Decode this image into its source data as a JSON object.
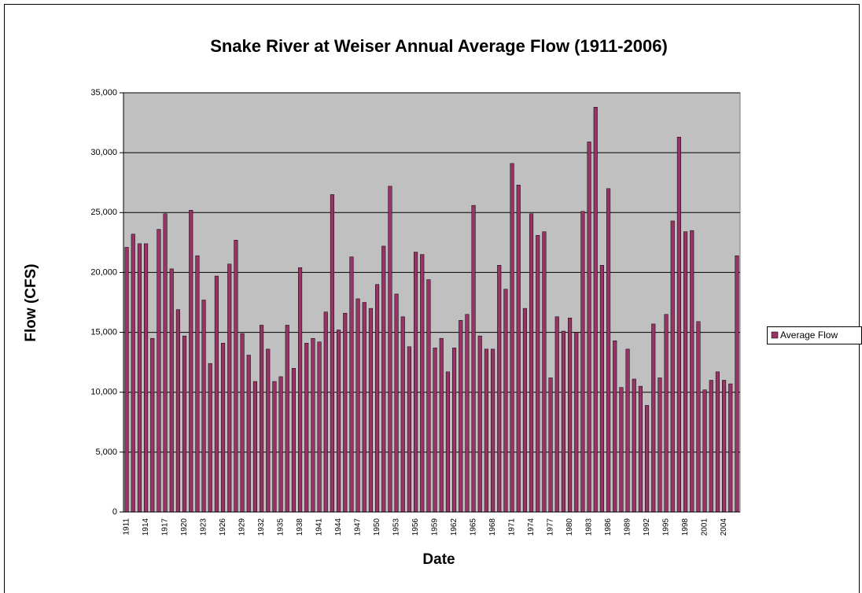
{
  "chart_data": {
    "type": "bar",
    "title": "Snake River at Weiser Annual Average Flow (1911-2006)",
    "x_label": "Date",
    "y_label": "Flow (CFS)",
    "categories": [
      "1911",
      null,
      null,
      "1914",
      null,
      null,
      "1917",
      null,
      null,
      "1920",
      null,
      null,
      "1923",
      null,
      null,
      "1926",
      null,
      null,
      "1929",
      null,
      null,
      "1932",
      null,
      null,
      "1935",
      null,
      null,
      "1938",
      null,
      null,
      "1941",
      null,
      null,
      "1944",
      null,
      null,
      "1947",
      null,
      null,
      "1950",
      null,
      null,
      "1953",
      null,
      null,
      "1956",
      null,
      null,
      "1959",
      null,
      null,
      "1962",
      null,
      null,
      "1965",
      null,
      null,
      "1968",
      null,
      null,
      "1971",
      null,
      null,
      "1974",
      null,
      null,
      "1977",
      null,
      null,
      "1980",
      null,
      null,
      "1983",
      null,
      null,
      "1986",
      null,
      null,
      "1989",
      null,
      null,
      "1992",
      null,
      null,
      "1995",
      null,
      null,
      "1998",
      null,
      null,
      "2001",
      null,
      null,
      "2004",
      null,
      null
    ],
    "series": [
      {
        "name": "Average Flow",
        "color": "#993366",
        "values": [
          22100,
          23200,
          22400,
          22400,
          14500,
          23600,
          24900,
          20300,
          16900,
          14700,
          25200,
          21400,
          17700,
          12400,
          19700,
          14100,
          20700,
          22700,
          14900,
          13100,
          10900,
          15600,
          13600,
          10900,
          11300,
          15600,
          12000,
          20400,
          14100,
          14500,
          14200,
          16700,
          26500,
          15200,
          16600,
          21300,
          17800,
          17500,
          17000,
          19000,
          22200,
          27200,
          18200,
          16300,
          13800,
          21700,
          21500,
          19400,
          13700,
          14500,
          11700,
          13700,
          16000,
          16500,
          25600,
          14700,
          13600,
          13600,
          20600,
          18600,
          29100,
          27300,
          17000,
          24900,
          23100,
          23400,
          11200,
          16300,
          15100,
          16200,
          15000,
          25100,
          30900,
          33800,
          20600,
          27000,
          14300,
          10400,
          13600,
          11100,
          10500,
          8900,
          15700,
          11200,
          16500,
          24300,
          31300,
          23400,
          23500,
          15900,
          10200,
          11000,
          11700,
          11000,
          10700,
          21400
        ]
      }
    ],
    "ylim": [
      0,
      35000
    ],
    "yticks": [
      0,
      {
        "value": 5000,
        "label": "5,000"
      },
      {
        "value": 10000,
        "label": "10,000"
      },
      {
        "value": 15000,
        "label": "15,000"
      },
      {
        "value": 20000,
        "label": "20,000"
      },
      {
        "value": 25000,
        "label": "25,000"
      },
      {
        "value": 30000,
        "label": "30,000"
      },
      {
        "value": 35000,
        "label": "35,000"
      }
    ],
    "grid": true,
    "legend": "right"
  }
}
